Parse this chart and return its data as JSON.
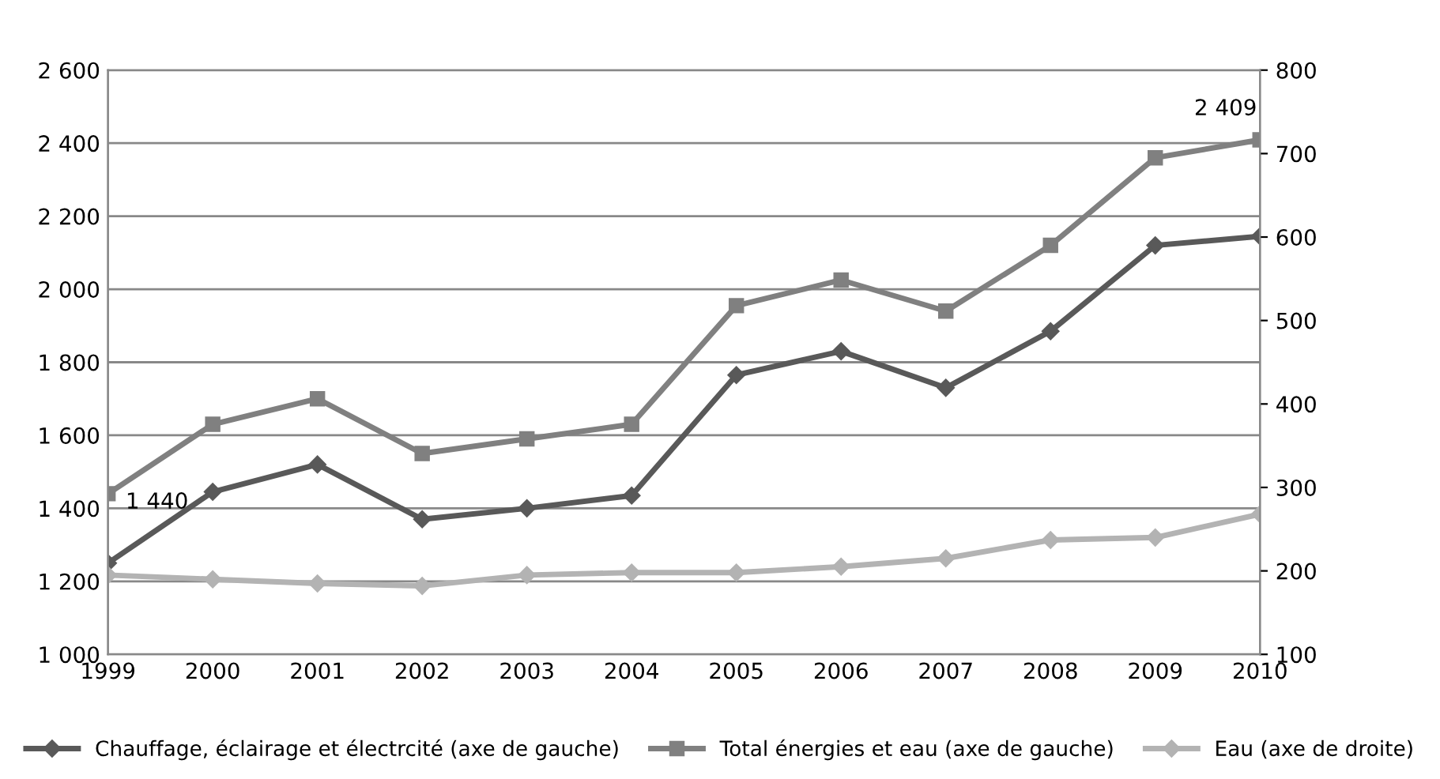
{
  "chart_data": {
    "type": "line",
    "categories": [
      "1999",
      "2000",
      "2001",
      "2002",
      "2003",
      "2004",
      "2005",
      "2006",
      "2007",
      "2008",
      "2009",
      "2010"
    ],
    "series": [
      {
        "name": "Chauffage, éclairage et électrcité (axe de gauche)",
        "color": "#595959",
        "marker": "diamond",
        "values": [
          1250,
          1445,
          1520,
          1370,
          1400,
          1435,
          1765,
          1830,
          1730,
          1885,
          2120,
          2145
        ]
      },
      {
        "name": "Total énergies et eau (axe de gauche)",
        "color": "#808080",
        "marker": "square",
        "values": [
          1440,
          1630,
          1700,
          1550,
          1590,
          1630,
          1955,
          2025,
          1940,
          2120,
          2360,
          2409
        ],
        "value_labels": [
          "1 440",
          null,
          null,
          null,
          null,
          null,
          null,
          null,
          null,
          null,
          null,
          "2 409"
        ]
      },
      {
        "name": "Eau (axe de droite)",
        "color": "#b3b3b3",
        "marker": "diamond",
        "axis": "y2",
        "values": [
          195,
          190,
          185,
          182,
          195,
          198,
          198,
          205,
          215,
          237,
          240,
          268
        ]
      }
    ],
    "ylim": [
      1000,
      2600
    ],
    "yticks": [
      {
        "value": 1000,
        "label": "1 000"
      },
      {
        "value": 1200,
        "label": "1 200"
      },
      {
        "value": 1400,
        "label": "1 400"
      },
      {
        "value": 1600,
        "label": "1 600"
      },
      {
        "value": 1800,
        "label": "1 800"
      },
      {
        "value": 2000,
        "label": "2 000"
      },
      {
        "value": 2200,
        "label": "2 200"
      },
      {
        "value": 2400,
        "label": "2 400"
      },
      {
        "value": 2600,
        "label": "2 600"
      }
    ],
    "y2lim": [
      100,
      800
    ],
    "y2ticks": [
      100,
      200,
      300,
      400,
      500,
      600,
      700,
      800
    ],
    "grid": "y",
    "legend": "bottom",
    "line_style": "solid"
  }
}
